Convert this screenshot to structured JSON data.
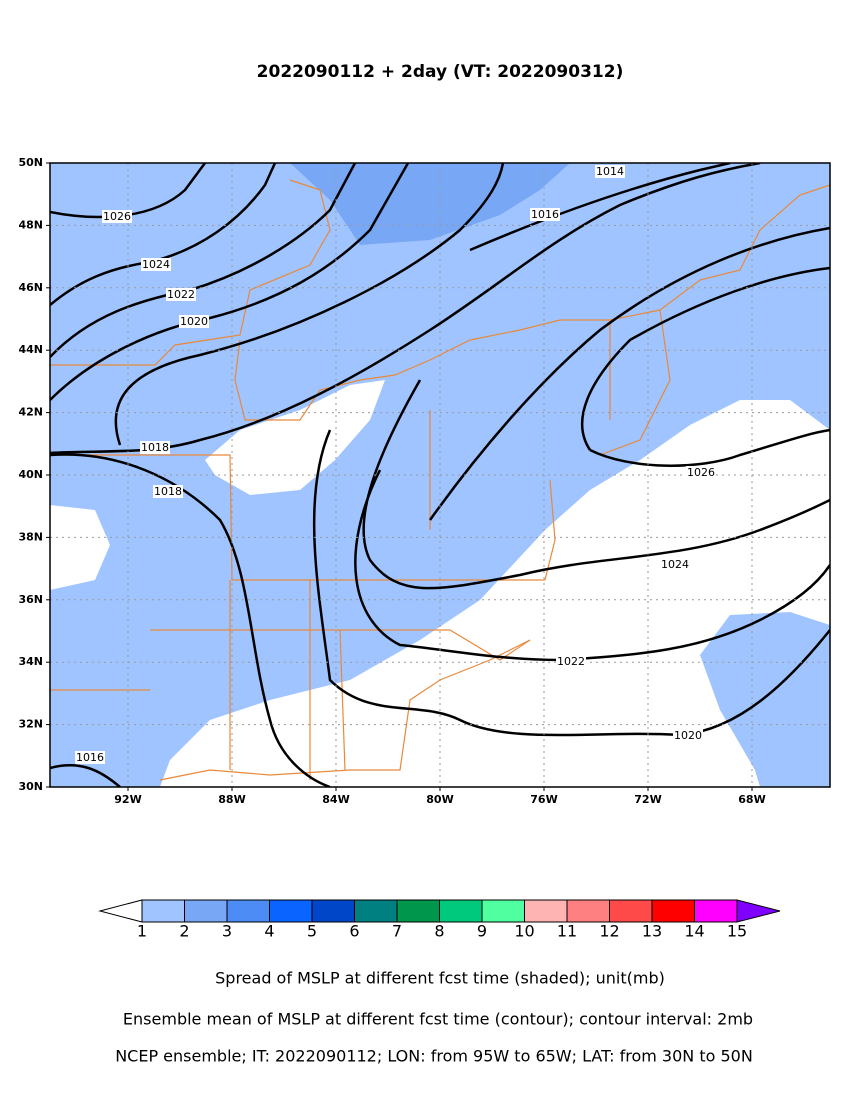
{
  "title": "2022090112 + 2day (VT: 2022090312)",
  "map": {
    "lat_ticks": [
      "50N",
      "48N",
      "46N",
      "44N",
      "42N",
      "40N",
      "38N",
      "36N",
      "34N",
      "32N",
      "30N"
    ],
    "lon_ticks": [
      "92W",
      "88W",
      "84W",
      "80W",
      "76W",
      "72W",
      "68W"
    ],
    "contour_labels": [
      1014,
      1026,
      1016,
      1024,
      1022,
      1020,
      1018,
      1018,
      1026,
      1024,
      1022,
      1020,
      1016
    ]
  },
  "colorbar": {
    "levels": [
      1,
      2,
      3,
      4,
      5,
      6,
      7,
      8,
      9,
      10,
      11,
      12,
      13,
      14,
      15
    ],
    "colors": [
      "#a0c4ff",
      "#78a8f5",
      "#4d8cf5",
      "#0a64ff",
      "#0046c8",
      "#008080",
      "#00964b",
      "#00c87d",
      "#50ffa0",
      "#ffb4b4",
      "#ff8080",
      "#ff4a4a",
      "#ff0000",
      "#ff00ff"
    ],
    "over_color": "#8000ff"
  },
  "captions": [
    "Spread of MSLP at different fcst time (shaded); unit(mb)",
    "Ensemble mean of MSLP at different fcst time (contour); contour interval: 2mb",
    "NCEP ensemble; IT: 2022090112; LON: from 95W to 65W; LAT: from 30N to 50N"
  ]
}
